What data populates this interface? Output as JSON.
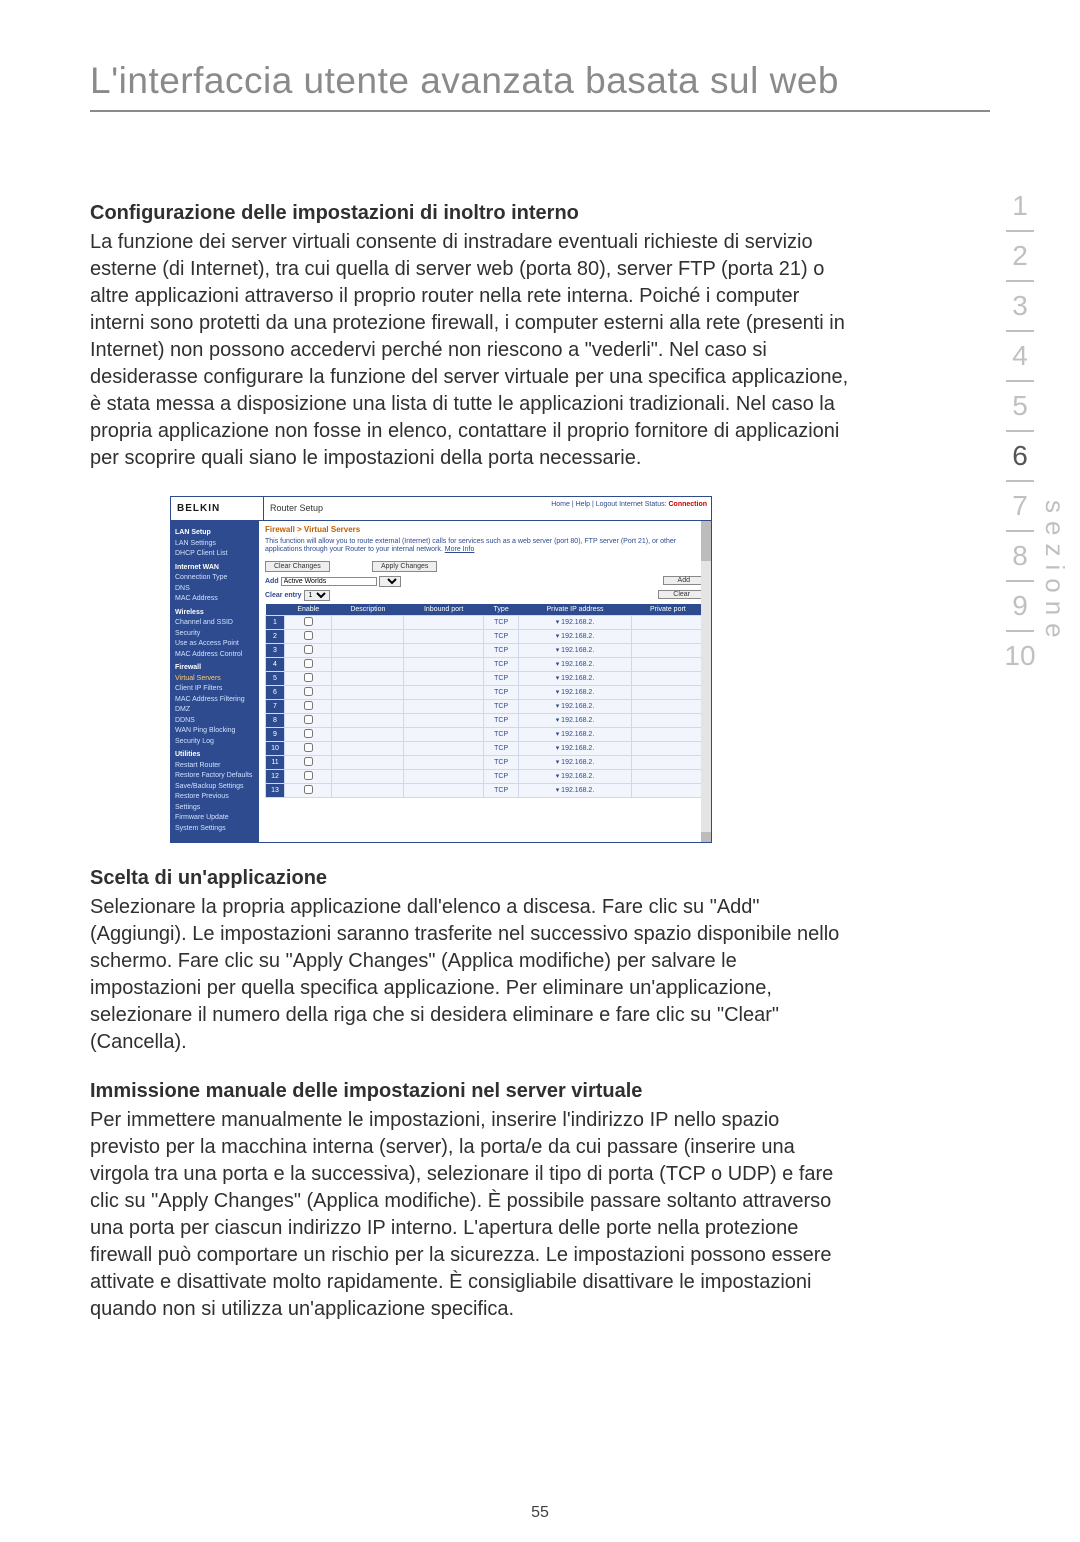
{
  "page": {
    "title": "L'interfaccia utente avanzata basata sul web",
    "number": "55"
  },
  "nav": {
    "items": [
      "1",
      "2",
      "3",
      "4",
      "5",
      "6",
      "7",
      "8",
      "9",
      "10"
    ],
    "active_index": 5,
    "side_label": "sezione"
  },
  "sections": {
    "s1_title": "Configurazione delle impostazioni di inoltro interno",
    "s1_body": "La funzione dei server virtuali consente di instradare eventuali richieste di servizio esterne (di Internet), tra cui quella di server web (porta 80), server FTP (porta 21) o altre applicazioni attraverso il proprio router nella rete interna. Poiché i computer interni sono protetti da una protezione firewall, i computer esterni alla rete (presenti in Internet) non possono accedervi perché non riescono a \"vederli\". Nel caso si desiderasse configurare la funzione del server virtuale per una specifica applicazione, è stata messa a disposizione una lista di tutte le applicazioni tradizionali. Nel caso la propria applicazione non fosse in elenco, contattare il proprio fornitore di applicazioni per scoprire quali siano le impostazioni della porta necessarie.",
    "s2_title": "Scelta di un'applicazione",
    "s2_body": "Selezionare la propria applicazione dall'elenco a discesa. Fare clic su \"Add\" (Aggiungi). Le impostazioni saranno trasferite nel successivo spazio disponibile nello schermo. Fare clic su \"Apply Changes\" (Applica modifiche) per salvare le impostazioni per quella specifica applicazione. Per eliminare un'applicazione, selezionare il numero della riga che si desidera eliminare e fare clic su \"Clear\" (Cancella).",
    "s3_title": "Immissione manuale delle impostazioni nel server virtuale",
    "s3_body": "Per immettere manualmente le impostazioni, inserire l'indirizzo IP nello spazio previsto per la macchina interna (server), la porta/e da cui passare (inserire una virgola tra una porta e la successiva), selezionare il tipo di porta (TCP o UDP) e fare clic su \"Apply Changes\" (Applica modifiche). È possibile passare soltanto attraverso una porta per ciascun indirizzo IP interno. L'apertura delle porte nella protezione firewall può comportare un rischio per la sicurezza. Le impostazioni possono essere attivate e disattivate molto rapidamente. È consigliabile disattivare le impostazioni quando non si utilizza un'applicazione specifica."
  },
  "router": {
    "brand": "BELKIN",
    "title": "Router Setup",
    "toplinks": "Home | Help | Logout   Internet Status:",
    "topstatus": "Connection",
    "breadcrumb": "Firewall > Virtual Servers",
    "desc": "This function will allow you to route external (Internet) calls for services such as a web server (port 80), FTP server (Port 21), or other applications through your Router to your internal network. ",
    "more": "More Info",
    "btn_clear_changes": "Clear Changes",
    "btn_apply_changes": "Apply Changes",
    "add_label": "Add",
    "add_value": "Active Worlds",
    "add_btn": "Add",
    "clear_label": "Clear entry",
    "clear_value": "1",
    "clear_btn": "Clear",
    "columns": [
      "",
      "Enable",
      "Description",
      "Inbound port",
      "Type",
      "Private IP address",
      "Private port"
    ],
    "type_value": "TCP",
    "ip_prefix": "192.168.2.",
    "row_count": 13,
    "sidebar": {
      "g1": "LAN Setup",
      "g1i": [
        "LAN Settings",
        "DHCP Client List"
      ],
      "g2": "Internet WAN",
      "g2i": [
        "Connection Type",
        "DNS",
        "MAC Address"
      ],
      "g3": "Wireless",
      "g3i": [
        "Channel and SSID",
        "Security",
        "Use as Access Point",
        "MAC Address Control"
      ],
      "g4": "Firewall",
      "g4hl": "Virtual Servers",
      "g4i": [
        "Client IP Filters",
        "MAC Address Filtering",
        "DMZ",
        "DDNS",
        "WAN Ping Blocking",
        "Security Log"
      ],
      "g5": "Utilities",
      "g5i": [
        "Restart Router",
        "Restore Factory Defaults",
        "Save/Backup Settings",
        "Restore Previous Settings",
        "Firmware Update",
        "System Settings"
      ]
    }
  }
}
